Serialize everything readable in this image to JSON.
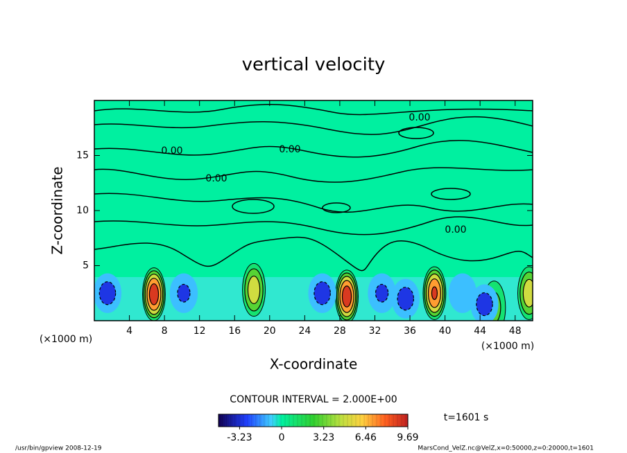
{
  "chart_data": {
    "type": "contour",
    "title": "vertical velocity",
    "x_label": "X-coordinate",
    "y_label": "Z-coordinate",
    "x_unit": "(×1000 m)",
    "y_unit": "(×1000 m)",
    "xlim": [
      0,
      50
    ],
    "xticks": [
      4,
      8,
      12,
      16,
      20,
      24,
      28,
      32,
      36,
      40,
      44,
      48
    ],
    "ylim": [
      0,
      20
    ],
    "yticks": [
      5,
      10,
      15
    ],
    "cells": [
      {
        "x": 6.8,
        "z": 2.4,
        "value": 9.5
      },
      {
        "x": 18.2,
        "z": 2.8,
        "value": 5.5
      },
      {
        "x": 28.8,
        "z": 2.2,
        "value": 9.5
      },
      {
        "x": 38.8,
        "z": 2.5,
        "value": 8.5
      },
      {
        "x": 45.6,
        "z": 1.2,
        "value": 3.0
      },
      {
        "x": 49.6,
        "z": 2.5,
        "value": 5.5
      },
      {
        "x": 1.5,
        "z": 2.5,
        "value": -3.0
      },
      {
        "x": 10.2,
        "z": 2.5,
        "value": -2.5
      },
      {
        "x": 26.0,
        "z": 2.5,
        "value": -3.0
      },
      {
        "x": 32.8,
        "z": 2.5,
        "value": -2.5
      },
      {
        "x": 35.5,
        "z": 2.0,
        "value": -3.0
      },
      {
        "x": 42.0,
        "z": 2.5,
        "value": -2.0
      },
      {
        "x": 44.5,
        "z": 1.5,
        "value": -3.0
      }
    ],
    "contour_labels": [
      "0.00",
      "0.00",
      "0.00",
      "0.00",
      "0.00"
    ],
    "contour_interval_text": "CONTOUR INTERVAL = 2.000E+00",
    "colorbar_lim": [
      -4.85,
      9.69
    ],
    "colorbar_ticks": [
      -3.23,
      0,
      3.23,
      6.46,
      9.69
    ],
    "time_text": "t=1601 s",
    "footer_left": "/usr/bin/gpview  2008-12-19",
    "footer_right": "MarsCond_VelZ.nc@VelZ,x=0:50000,z=0:20000,t=1601"
  }
}
